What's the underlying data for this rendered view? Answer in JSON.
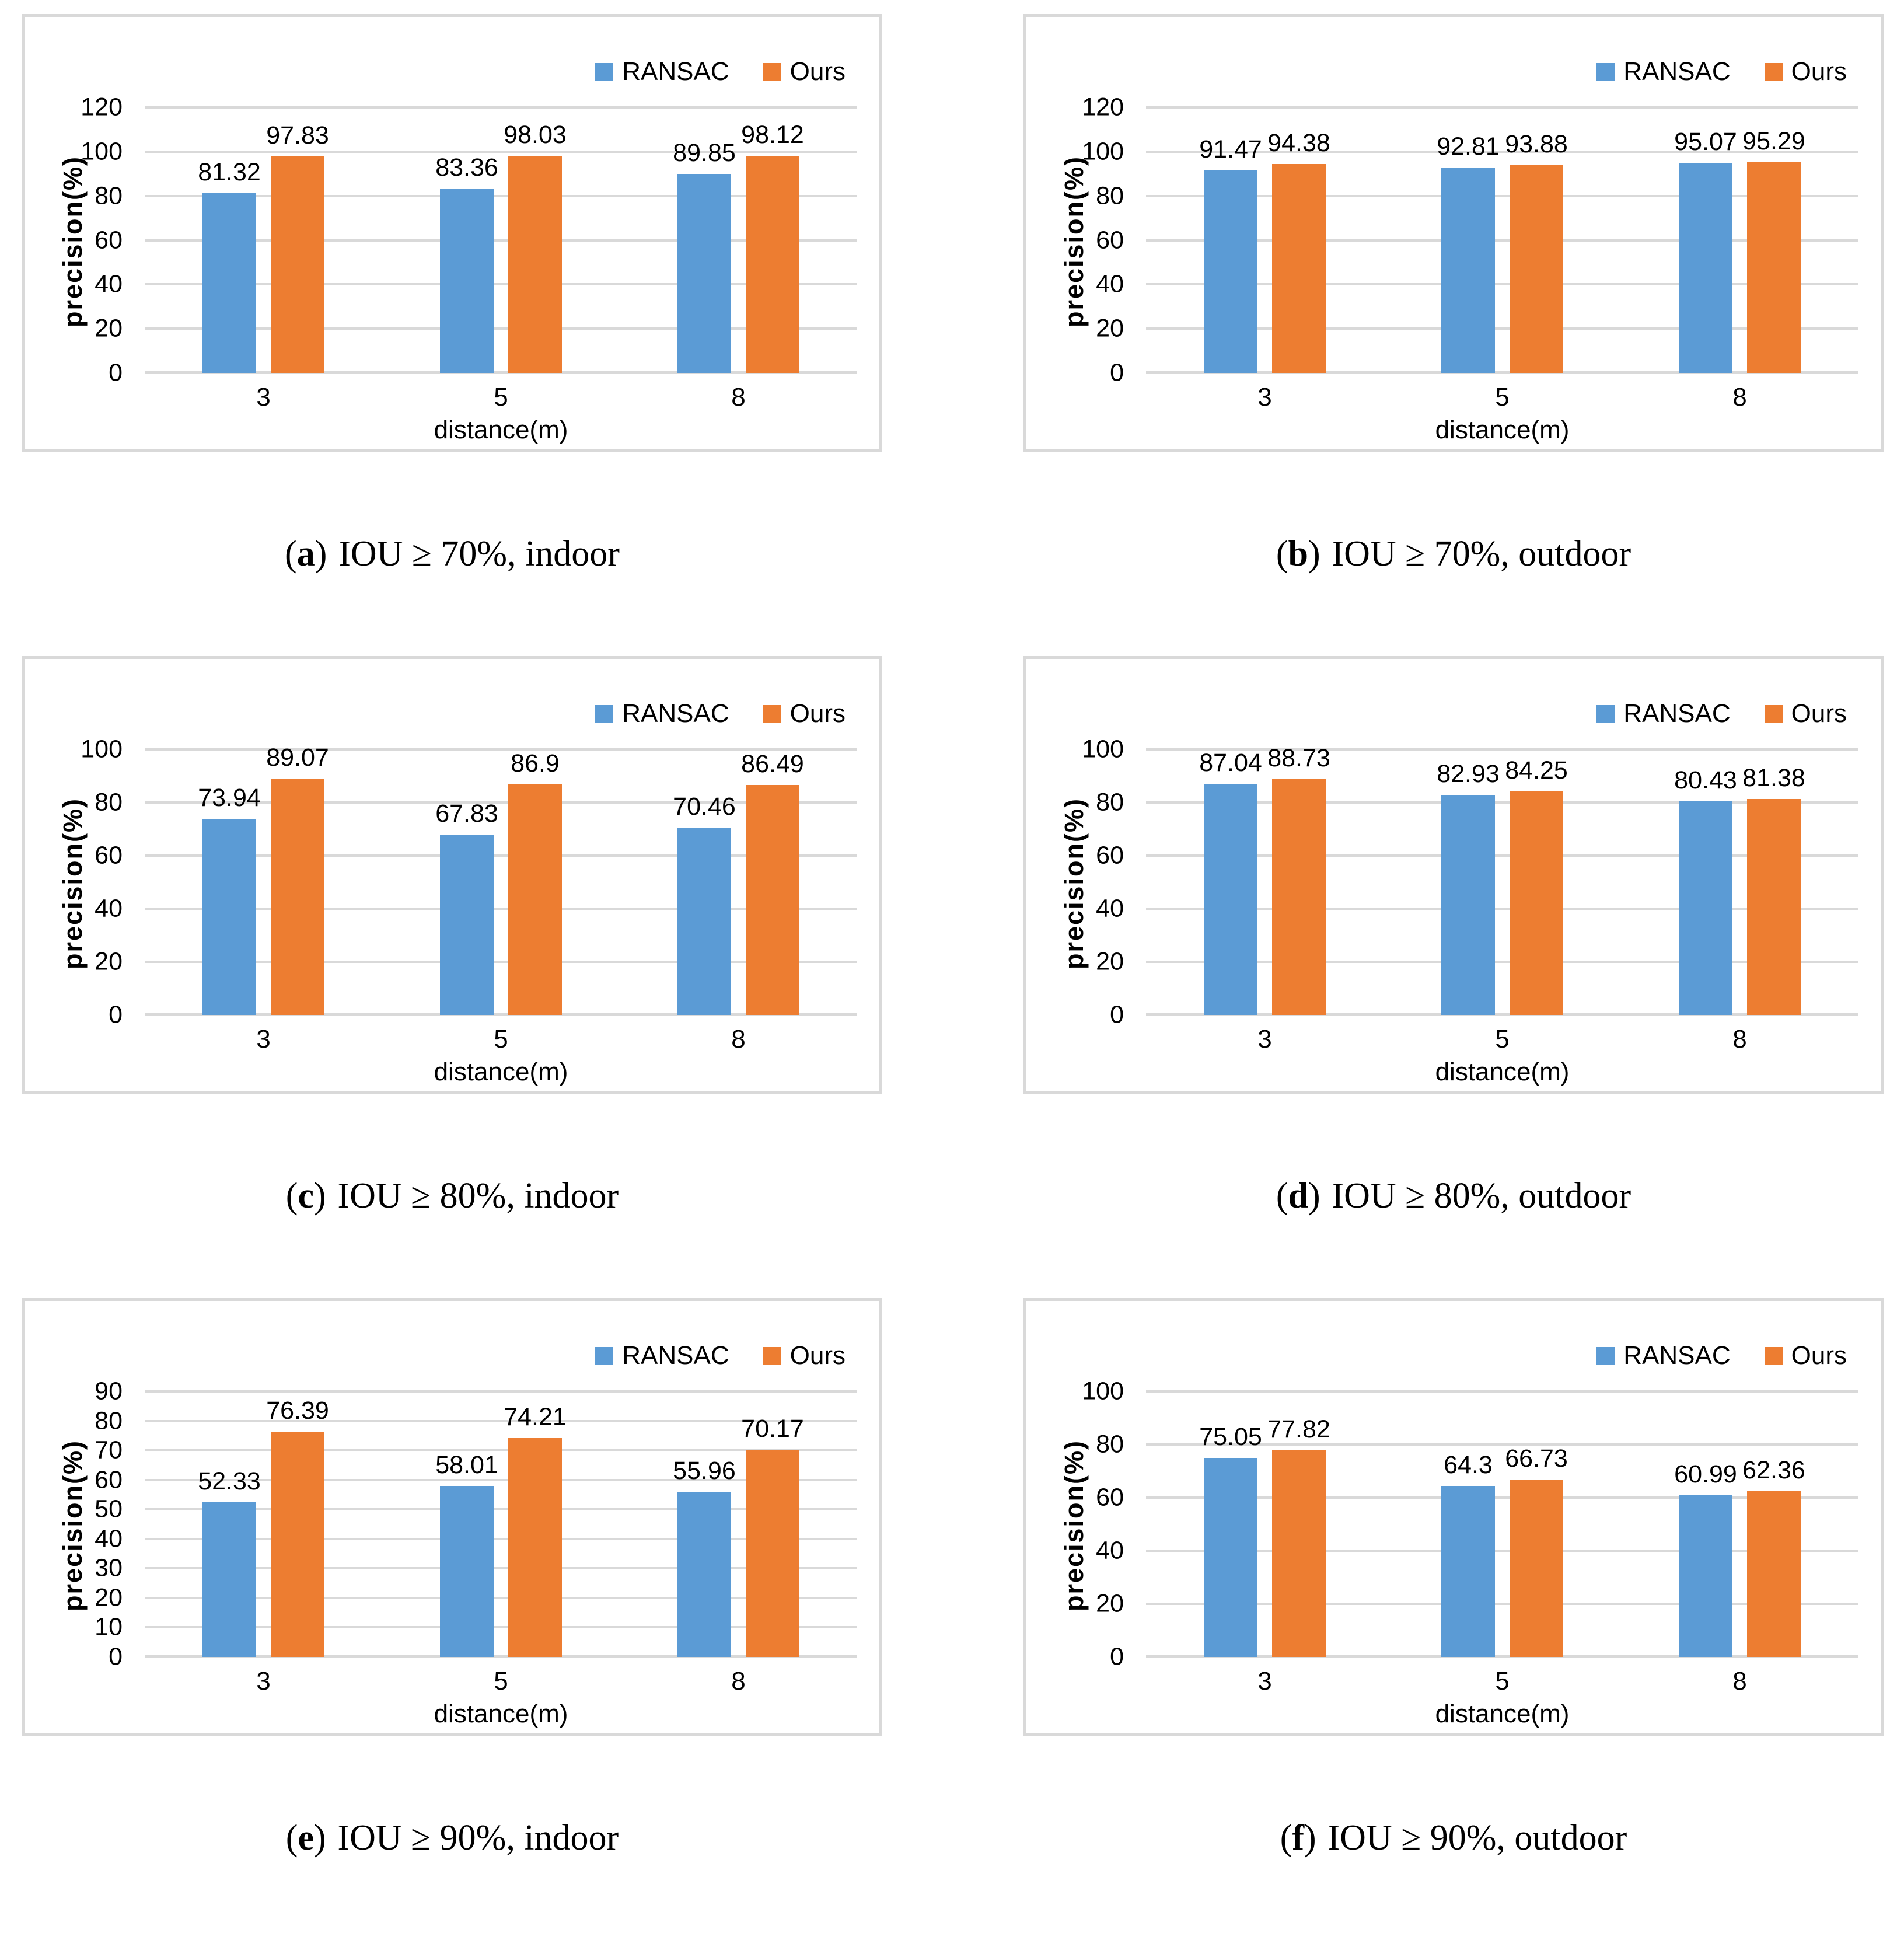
{
  "colors": {
    "series": [
      "#5B9BD5",
      "#ED7D31"
    ],
    "gridline": "#D9D9D9",
    "panel_border": "#D9D9D9"
  },
  "chart_data": [
    {
      "id": "a",
      "type": "bar",
      "caption": {
        "open": "(",
        "letter": "a",
        "close": ")",
        "text": "IOU ≥ 70%, indoor"
      },
      "categories": [
        "3",
        "5",
        "8"
      ],
      "series": [
        {
          "name": "RANSAC",
          "values": [
            81.32,
            83.36,
            89.85
          ]
        },
        {
          "name": "Ours",
          "values": [
            97.83,
            98.03,
            98.12
          ]
        }
      ],
      "xlabel": "distance(m)",
      "ylabel": "precision(%)",
      "ylim": [
        0,
        120
      ],
      "yticks": [
        0,
        20,
        40,
        60,
        80,
        100,
        120
      ],
      "grid": true,
      "legend_position": "top-right"
    },
    {
      "id": "b",
      "type": "bar",
      "caption": {
        "open": "(",
        "letter": "b",
        "close": ")",
        "text": "IOU ≥ 70%, outdoor"
      },
      "categories": [
        "3",
        "5",
        "8"
      ],
      "series": [
        {
          "name": "RANSAC",
          "values": [
            91.47,
            92.81,
            95.07
          ]
        },
        {
          "name": "Ours",
          "values": [
            94.38,
            93.88,
            95.29
          ]
        }
      ],
      "xlabel": "distance(m)",
      "ylabel": "precision(%)",
      "ylim": [
        0,
        120
      ],
      "yticks": [
        0,
        20,
        40,
        60,
        80,
        100,
        120
      ],
      "grid": true,
      "legend_position": "top-right"
    },
    {
      "id": "c",
      "type": "bar",
      "caption": {
        "open": "(",
        "letter": "c",
        "close": ")",
        "text": "IOU ≥ 80%, indoor"
      },
      "categories": [
        "3",
        "5",
        "8"
      ],
      "series": [
        {
          "name": "RANSAC",
          "values": [
            73.94,
            67.83,
            70.46
          ]
        },
        {
          "name": "Ours",
          "values": [
            89.07,
            86.9,
            86.49
          ]
        }
      ],
      "xlabel": "distance(m)",
      "ylabel": "precision(%)",
      "ylim": [
        0,
        100
      ],
      "yticks": [
        0,
        20,
        40,
        60,
        80,
        100
      ],
      "grid": true,
      "legend_position": "top-right"
    },
    {
      "id": "d",
      "type": "bar",
      "caption": {
        "open": "(",
        "letter": "d",
        "close": ")",
        "text": "IOU ≥ 80%, outdoor"
      },
      "categories": [
        "3",
        "5",
        "8"
      ],
      "series": [
        {
          "name": "RANSAC",
          "values": [
            87.04,
            82.93,
            80.43
          ]
        },
        {
          "name": "Ours",
          "values": [
            88.73,
            84.25,
            81.38
          ]
        }
      ],
      "xlabel": "distance(m)",
      "ylabel": "precision(%)",
      "ylim": [
        0,
        100
      ],
      "yticks": [
        0,
        20,
        40,
        60,
        80,
        100
      ],
      "grid": true,
      "legend_position": "top-right"
    },
    {
      "id": "e",
      "type": "bar",
      "caption": {
        "open": "(",
        "letter": "e",
        "close": ")",
        "text": "IOU ≥ 90%, indoor"
      },
      "categories": [
        "3",
        "5",
        "8"
      ],
      "series": [
        {
          "name": "RANSAC",
          "values": [
            52.33,
            58.01,
            55.96
          ]
        },
        {
          "name": "Ours",
          "values": [
            76.39,
            74.21,
            70.17
          ]
        }
      ],
      "xlabel": "distance(m)",
      "ylabel": "precision(%)",
      "ylim": [
        0,
        90
      ],
      "yticks": [
        0,
        10,
        20,
        30,
        40,
        50,
        60,
        70,
        80,
        90
      ],
      "grid": true,
      "legend_position": "top-right"
    },
    {
      "id": "f",
      "type": "bar",
      "caption": {
        "open": "(",
        "letter": "f",
        "close": ")",
        "text": "IOU ≥ 90%, outdoor"
      },
      "categories": [
        "3",
        "5",
        "8"
      ],
      "series": [
        {
          "name": "RANSAC",
          "values": [
            75.05,
            64.3,
            60.99
          ]
        },
        {
          "name": "Ours",
          "values": [
            77.82,
            66.73,
            62.36
          ]
        }
      ],
      "xlabel": "distance(m)",
      "ylabel": "precision(%)",
      "ylim": [
        0,
        100
      ],
      "yticks": [
        0,
        20,
        40,
        60,
        80,
        100
      ],
      "grid": true,
      "legend_position": "top-right"
    }
  ]
}
